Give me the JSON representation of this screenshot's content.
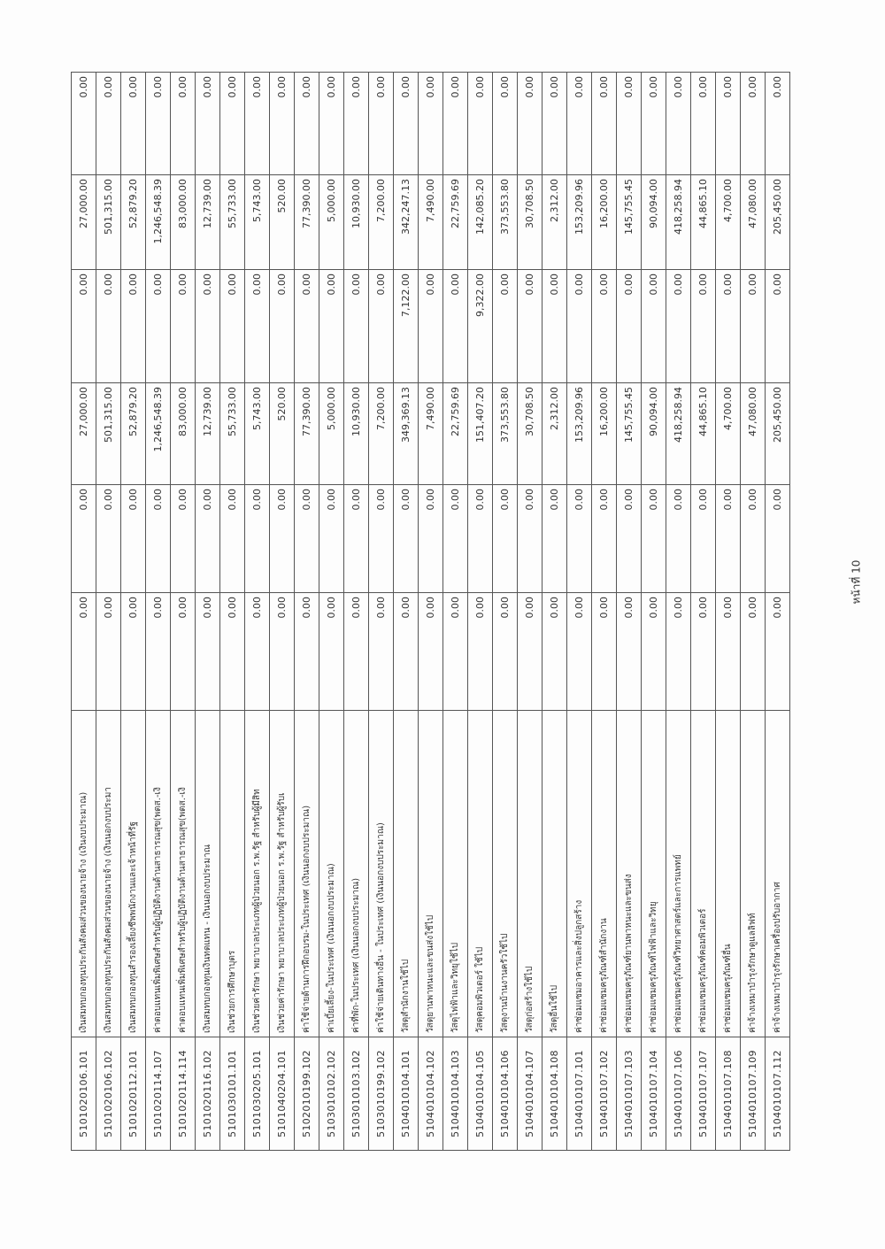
{
  "rows": [
    [
      "5101020106.101",
      "เงินสมทบกองทุนประกันสังคมส่วนของนายจ้าง (เงินงบประมาณ)",
      "0.00",
      "0.00",
      "27,000.00",
      "0.00",
      "27,000.00",
      "0.00"
    ],
    [
      "5101020106.102",
      "เงินสมทบกองทุนประกันสังคมส่วนของนายจ้าง (เงินนอกงบประมา",
      "0.00",
      "0.00",
      "501,315.00",
      "0.00",
      "501,315.00",
      "0.00"
    ],
    [
      "5101020112.101",
      "เงินสมทบกองทุนสำรองเลี้ยงชีพพนักงานและเจ้าหน้าที่รัฐ",
      "0.00",
      "0.00",
      "52,879.20",
      "0.00",
      "52,879.20",
      "0.00"
    ],
    [
      "5101020114.107",
      "ค่าตอบแทนเพิ่มพิเศษสำหรับผู้ปฏิบัติงานด้านสาธารณสุข(พตส.-เงิ",
      "0.00",
      "0.00",
      "1,246,548.39",
      "0.00",
      "1,246,548.39",
      "0.00"
    ],
    [
      "5101020114.114",
      "ค่าตอบแทนเพิ่มพิเศษสำหรับผู้ปฏิบัติงานด้านสาธารณสุข(พตส.-เงิ",
      "0.00",
      "0.00",
      "83,000.00",
      "0.00",
      "83,000.00",
      "0.00"
    ],
    [
      "5101020116.102",
      "เงินสมทบกองทุนเงินทดแทน - เงินนอกงบประมาณ",
      "0.00",
      "0.00",
      "12,739.00",
      "0.00",
      "12,739.00",
      "0.00"
    ],
    [
      "5101030101.101",
      "เงินช่วยการศึกษาบุตร",
      "0.00",
      "0.00",
      "55,733.00",
      "0.00",
      "55,733.00",
      "0.00"
    ],
    [
      "5101030205.101",
      "เงินช่วยค่ารักษา พยาบาลประเภทผู้ป่วยนอก ร.พ.รัฐ สำหรับผู้มีสิท",
      "0.00",
      "0.00",
      "5,743.00",
      "0.00",
      "5,743.00",
      "0.00"
    ],
    [
      "5101040204.101",
      "เงินช่วยค่ารักษา พยาบาลประเภทผู้ป่วยนอก ร.พ.รัฐ สำหรับผู้รับเ",
      "0.00",
      "0.00",
      "520.00",
      "0.00",
      "520.00",
      "0.00"
    ],
    [
      "5102010199.102",
      "ค่าใช้จ่ายด้านการฝึกอบรม-ในประเทศ (เงินนอกงบประมาณ)",
      "0.00",
      "0.00",
      "77,390.00",
      "0.00",
      "77,390.00",
      "0.00"
    ],
    [
      "5103010102.102",
      "ค่าเบี้ยเลี้ยง-ในประเทศ (เงินนอกงบประมาณ)",
      "0.00",
      "0.00",
      "5,000.00",
      "0.00",
      "5,000.00",
      "0.00"
    ],
    [
      "5103010103.102",
      "ค่าที่พัก-ในประเทศ (เงินนอกงบประมาณ)",
      "0.00",
      "0.00",
      "10,930.00",
      "0.00",
      "10,930.00",
      "0.00"
    ],
    [
      "5103010199.102",
      "ค่าใช้จ่ายเดินทางอื่น - ในประเทศ (เงินนอกงบประมาณ)",
      "0.00",
      "0.00",
      "7,200.00",
      "0.00",
      "7,200.00",
      "0.00"
    ],
    [
      "5104010104.101",
      "วัสดุสำนักงานใช้ไป",
      "0.00",
      "0.00",
      "349,369.13",
      "7,122.00",
      "342,247.13",
      "0.00"
    ],
    [
      "5104010104.102",
      "วัสดุยานพาหนะและขนส่งใช้ไป",
      "0.00",
      "0.00",
      "7,490.00",
      "0.00",
      "7,490.00",
      "0.00"
    ],
    [
      "5104010104.103",
      "วัสดุไฟฟ้าและวิทยุใช้ไป",
      "0.00",
      "0.00",
      "22,759.69",
      "0.00",
      "22,759.69",
      "0.00"
    ],
    [
      "5104010104.105",
      "วัสดุคอมพิวเตอร์ ใช้ไป",
      "0.00",
      "0.00",
      "151,407.20",
      "9,322.00",
      "142,085.20",
      "0.00"
    ],
    [
      "5104010104.106",
      "วัสดุงานบ้านงานครัวใช้ไป",
      "0.00",
      "0.00",
      "373,553.80",
      "0.00",
      "373,553.80",
      "0.00"
    ],
    [
      "5104010104.107",
      "วัสดุก่อสร้างใช้ไป",
      "0.00",
      "0.00",
      "30,708.50",
      "0.00",
      "30,708.50",
      "0.00"
    ],
    [
      "5104010104.108",
      "วัสดุอื่นใช้ไป",
      "0.00",
      "0.00",
      "2,312.00",
      "0.00",
      "2,312.00",
      "0.00"
    ],
    [
      "5104010107.101",
      "ค่าซ่อมแซมอาคารและสิ่งปลูกสร้าง",
      "0.00",
      "0.00",
      "153,209.96",
      "0.00",
      "153,209.96",
      "0.00"
    ],
    [
      "5104010107.102",
      "ค่าซ่อมแซมครุภัณฑ์สำนักงาน",
      "0.00",
      "0.00",
      "16,200.00",
      "0.00",
      "16,200.00",
      "0.00"
    ],
    [
      "5104010107.103",
      "ค่าซ่อมแซมครุภัณฑ์ยานพาหนะและขนส่ง",
      "0.00",
      "0.00",
      "145,755.45",
      "0.00",
      "145,755.45",
      "0.00"
    ],
    [
      "5104010107.104",
      "ค่าซ่อมแซมครุภัณฑ์ไฟฟ้าและวิทยุ",
      "0.00",
      "0.00",
      "90,094.00",
      "0.00",
      "90,094.00",
      "0.00"
    ],
    [
      "5104010107.106",
      "ค่าซ่อมแซมครุภัณฑ์วิทยาศาสตร์และการแพทย์",
      "0.00",
      "0.00",
      "418,258.94",
      "0.00",
      "418,258.94",
      "0.00"
    ],
    [
      "5104010107.107",
      "ค่าซ่อมแซมครุภัณฑ์คอมพิวเตอร์",
      "0.00",
      "0.00",
      "44,865.10",
      "0.00",
      "44,865.10",
      "0.00"
    ],
    [
      "5104010107.108",
      "ค่าซ่อมแซมครุภัณฑ์อื่น",
      "0.00",
      "0.00",
      "4,700.00",
      "0.00",
      "4,700.00",
      "0.00"
    ],
    [
      "5104010107.109",
      "ค่าจ้างเหมาบำรุงรักษาดูแลลิฟท์",
      "0.00",
      "0.00",
      "47,080.00",
      "0.00",
      "47,080.00",
      "0.00"
    ],
    [
      "5104010107.112",
      "ค่าจ้างเหมาบำรุงรักษาเครื่องปรับอากาศ",
      "0.00",
      "0.00",
      "205,450.00",
      "0.00",
      "205,450.00",
      "0.00"
    ]
  ],
  "footer": {
    "page_label": "หน้าที่ 10"
  }
}
